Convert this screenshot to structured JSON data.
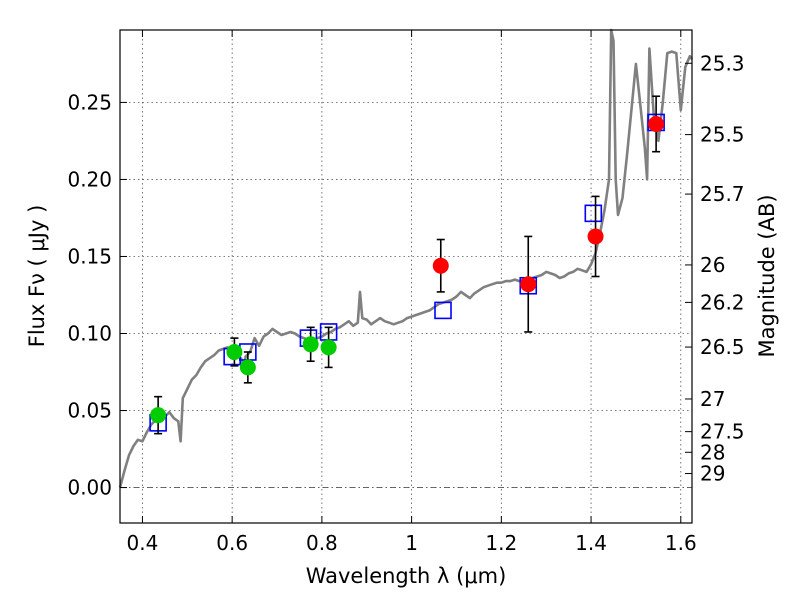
{
  "chart_data": {
    "type": "scatter",
    "xlabel": "Wavelength  λ (μm)",
    "ylabel": "Flux  Fν  ( μJy )",
    "y2label": "Magnitude (AB)",
    "xlim": [
      0.35,
      1.625
    ],
    "ylim": [
      -0.023,
      0.297
    ],
    "xticks": [
      0.4,
      0.6,
      0.8,
      1.0,
      1.2,
      1.4,
      1.6
    ],
    "xtick_labels": [
      "0.4",
      "0.6",
      "0.8",
      "1",
      "1.2",
      "1.4",
      "1.6"
    ],
    "yticks": [
      0.0,
      0.05,
      0.1,
      0.15,
      0.2,
      0.25
    ],
    "ytick_labels": [
      "0.00",
      "0.05",
      "0.10",
      "0.15",
      "0.20",
      "0.25"
    ],
    "y2ticks": [
      {
        "label": "25.3",
        "flux": 0.2754
      },
      {
        "label": "25.5",
        "flux": 0.2291
      },
      {
        "label": "25.7",
        "flux": 0.1905
      },
      {
        "label": "26",
        "flux": 0.1445
      },
      {
        "label": "26.2",
        "flux": 0.1202
      },
      {
        "label": "26.5",
        "flux": 0.0912
      },
      {
        "label": "27",
        "flux": 0.0575
      },
      {
        "label": "27.5",
        "flux": 0.0363
      },
      {
        "label": "28",
        "flux": 0.0229
      },
      {
        "label": "29",
        "flux": 0.0091
      }
    ],
    "grid": true,
    "colors": {
      "model": "#808080",
      "model_points": "#0000ff",
      "green_points": "#00cc00",
      "red_points": "#ff0000",
      "errorbar": "#000000",
      "zero_line": "#555555"
    },
    "model_spectrum": [
      [
        0.35,
        0.0
      ],
      [
        0.36,
        0.011
      ],
      [
        0.37,
        0.021
      ],
      [
        0.38,
        0.027
      ],
      [
        0.39,
        0.031
      ],
      [
        0.4,
        0.03
      ],
      [
        0.41,
        0.036
      ],
      [
        0.42,
        0.041
      ],
      [
        0.43,
        0.044
      ],
      [
        0.44,
        0.047
      ],
      [
        0.45,
        0.046
      ],
      [
        0.46,
        0.049
      ],
      [
        0.47,
        0.045
      ],
      [
        0.48,
        0.043
      ],
      [
        0.485,
        0.03
      ],
      [
        0.49,
        0.058
      ],
      [
        0.5,
        0.064
      ],
      [
        0.51,
        0.07
      ],
      [
        0.52,
        0.073
      ],
      [
        0.53,
        0.078
      ],
      [
        0.54,
        0.082
      ],
      [
        0.55,
        0.084
      ],
      [
        0.56,
        0.086
      ],
      [
        0.57,
        0.089
      ],
      [
        0.58,
        0.09
      ],
      [
        0.59,
        0.091
      ],
      [
        0.6,
        0.088
      ],
      [
        0.61,
        0.086
      ],
      [
        0.62,
        0.084
      ],
      [
        0.625,
        0.075
      ],
      [
        0.63,
        0.085
      ],
      [
        0.64,
        0.088
      ],
      [
        0.65,
        0.097
      ],
      [
        0.66,
        0.092
      ],
      [
        0.67,
        0.098
      ],
      [
        0.68,
        0.1
      ],
      [
        0.69,
        0.103
      ],
      [
        0.7,
        0.101
      ],
      [
        0.71,
        0.099
      ],
      [
        0.72,
        0.1
      ],
      [
        0.73,
        0.101
      ],
      [
        0.74,
        0.1
      ],
      [
        0.75,
        0.098
      ],
      [
        0.76,
        0.097
      ],
      [
        0.77,
        0.096
      ],
      [
        0.78,
        0.095
      ],
      [
        0.79,
        0.097
      ],
      [
        0.8,
        0.098
      ],
      [
        0.81,
        0.1
      ],
      [
        0.82,
        0.101
      ],
      [
        0.83,
        0.103
      ],
      [
        0.84,
        0.104
      ],
      [
        0.85,
        0.106
      ],
      [
        0.86,
        0.108
      ],
      [
        0.87,
        0.105
      ],
      [
        0.88,
        0.107
      ],
      [
        0.885,
        0.127
      ],
      [
        0.89,
        0.11
      ],
      [
        0.9,
        0.109
      ],
      [
        0.91,
        0.106
      ],
      [
        0.92,
        0.108
      ],
      [
        0.93,
        0.11
      ],
      [
        0.94,
        0.108
      ],
      [
        0.95,
        0.107
      ],
      [
        0.96,
        0.106
      ],
      [
        0.97,
        0.107
      ],
      [
        0.98,
        0.108
      ],
      [
        0.99,
        0.11
      ],
      [
        1.0,
        0.111
      ],
      [
        1.01,
        0.112
      ],
      [
        1.02,
        0.113
      ],
      [
        1.03,
        0.114
      ],
      [
        1.04,
        0.115
      ],
      [
        1.05,
        0.117
      ],
      [
        1.06,
        0.119
      ],
      [
        1.07,
        0.12
      ],
      [
        1.08,
        0.121
      ],
      [
        1.09,
        0.122
      ],
      [
        1.1,
        0.124
      ],
      [
        1.11,
        0.127
      ],
      [
        1.12,
        0.125
      ],
      [
        1.13,
        0.123
      ],
      [
        1.14,
        0.126
      ],
      [
        1.15,
        0.128
      ],
      [
        1.16,
        0.13
      ],
      [
        1.17,
        0.131
      ],
      [
        1.18,
        0.132
      ],
      [
        1.19,
        0.133
      ],
      [
        1.2,
        0.133
      ],
      [
        1.21,
        0.134
      ],
      [
        1.22,
        0.134
      ],
      [
        1.23,
        0.135
      ],
      [
        1.24,
        0.134
      ],
      [
        1.25,
        0.135
      ],
      [
        1.26,
        0.136
      ],
      [
        1.27,
        0.136
      ],
      [
        1.28,
        0.137
      ],
      [
        1.29,
        0.138
      ],
      [
        1.3,
        0.14
      ],
      [
        1.31,
        0.139
      ],
      [
        1.32,
        0.138
      ],
      [
        1.33,
        0.136
      ],
      [
        1.34,
        0.137
      ],
      [
        1.35,
        0.139
      ],
      [
        1.36,
        0.14
      ],
      [
        1.37,
        0.142
      ],
      [
        1.38,
        0.141
      ],
      [
        1.39,
        0.14
      ],
      [
        1.4,
        0.145
      ],
      [
        1.41,
        0.152
      ],
      [
        1.42,
        0.165
      ],
      [
        1.43,
        0.18
      ],
      [
        1.44,
        0.2
      ],
      [
        1.445,
        0.297
      ],
      [
        1.45,
        0.29
      ],
      [
        1.455,
        0.2
      ],
      [
        1.46,
        0.177
      ],
      [
        1.47,
        0.188
      ],
      [
        1.48,
        0.215
      ],
      [
        1.49,
        0.245
      ],
      [
        1.5,
        0.275
      ],
      [
        1.51,
        0.248
      ],
      [
        1.52,
        0.22
      ],
      [
        1.525,
        0.2
      ],
      [
        1.53,
        0.285
      ],
      [
        1.54,
        0.24
      ],
      [
        1.55,
        0.225
      ],
      [
        1.56,
        0.25
      ],
      [
        1.57,
        0.282
      ],
      [
        1.58,
        0.283
      ],
      [
        1.59,
        0.282
      ],
      [
        1.6,
        0.245
      ],
      [
        1.61,
        0.273
      ],
      [
        1.62,
        0.28
      ],
      [
        1.625,
        0.278
      ]
    ],
    "model_points": [
      [
        0.435,
        0.042
      ],
      [
        0.6,
        0.085
      ],
      [
        0.635,
        0.088
      ],
      [
        0.77,
        0.097
      ],
      [
        0.815,
        0.101
      ],
      [
        1.07,
        0.115
      ],
      [
        1.26,
        0.131
      ],
      [
        1.405,
        0.178
      ],
      [
        1.545,
        0.237
      ]
    ],
    "green_points": [
      {
        "x": 0.435,
        "y": 0.047,
        "err": 0.012
      },
      {
        "x": 0.605,
        "y": 0.088,
        "err": 0.009
      },
      {
        "x": 0.635,
        "y": 0.078,
        "err": 0.01
      },
      {
        "x": 0.775,
        "y": 0.093,
        "err": 0.011
      },
      {
        "x": 0.815,
        "y": 0.091,
        "err": 0.013
      }
    ],
    "red_points": [
      {
        "x": 1.065,
        "y": 0.144,
        "err": 0.017
      },
      {
        "x": 1.26,
        "y": 0.132,
        "err": 0.031
      },
      {
        "x": 1.41,
        "y": 0.163,
        "err": 0.026
      },
      {
        "x": 1.545,
        "y": 0.236,
        "err": 0.018
      }
    ]
  }
}
